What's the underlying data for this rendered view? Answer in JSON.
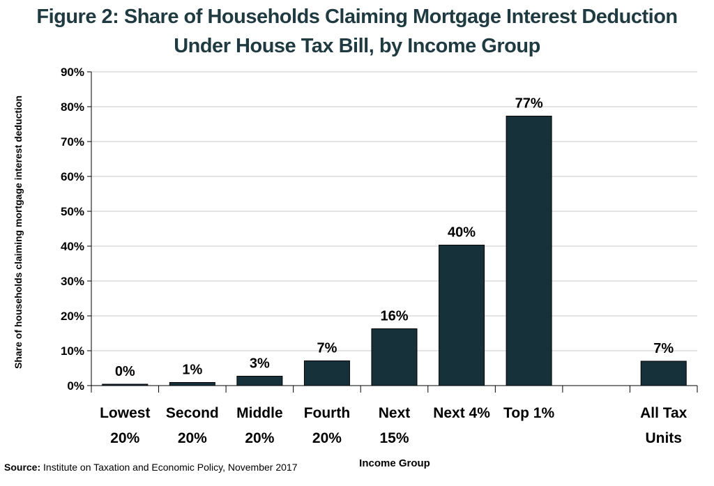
{
  "chart_data": {
    "type": "bar",
    "title": "Figure 2: Share of Households Claiming Mortgage Interest Deduction",
    "subtitle": "Under House Tax Bill, by Income Group",
    "xlabel": "Income Group",
    "ylabel": "Share of households claiming mortgage interest deduction",
    "ylim": [
      0,
      90
    ],
    "yticks": [
      "0%",
      "10%",
      "20%",
      "30%",
      "40%",
      "50%",
      "60%",
      "70%",
      "80%",
      "90%"
    ],
    "grid": true,
    "categories": [
      [
        "Lowest",
        "20%"
      ],
      [
        "Second",
        "20%"
      ],
      [
        "Middle",
        "20%"
      ],
      [
        "Fourth",
        "20%"
      ],
      [
        "Next",
        "15%"
      ],
      [
        "Next 4%"
      ],
      [
        "Top 1%"
      ],
      [],
      [
        "All Tax",
        "Units"
      ]
    ],
    "values": [
      0.4,
      0.9,
      2.7,
      7.1,
      16.3,
      40.3,
      77.3,
      null,
      7.0
    ],
    "data_labels": [
      "0%",
      "1%",
      "3%",
      "7%",
      "16%",
      "40%",
      "77%",
      "",
      "7%"
    ],
    "bar_color": "#17313a"
  },
  "source": {
    "label": "Source:",
    "text": " Institute on Taxation and Economic Policy, November 2017"
  }
}
